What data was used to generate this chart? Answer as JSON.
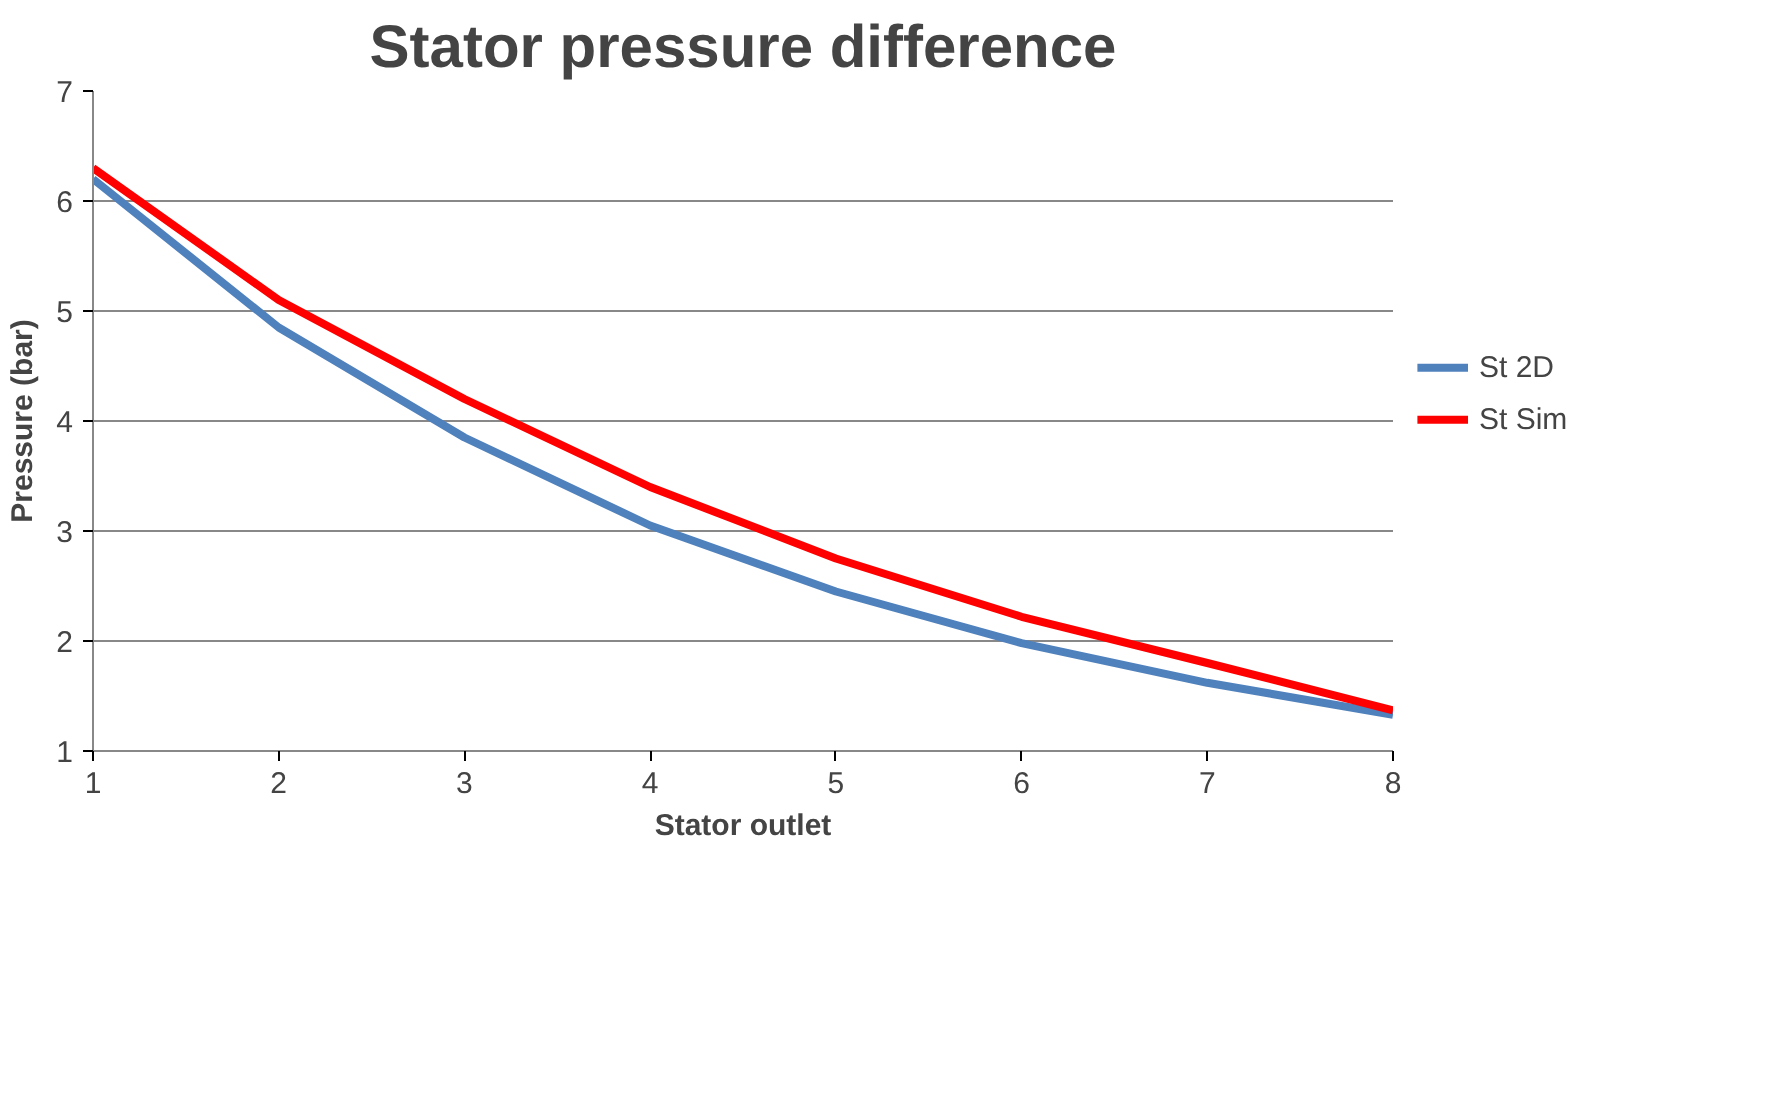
{
  "chart_data": {
    "type": "line",
    "title": "Stator pressure difference",
    "xlabel": "Stator outlet",
    "ylabel": "Pressure (bar)",
    "x": [
      1,
      2,
      3,
      4,
      5,
      6,
      7,
      8
    ],
    "series": [
      {
        "name": "St 2D",
        "color": "#4f81bd",
        "values": [
          6.2,
          4.85,
          3.85,
          3.05,
          2.45,
          1.98,
          1.62,
          1.33
        ]
      },
      {
        "name": "St Sim",
        "color": "#ff0000",
        "values": [
          6.3,
          5.1,
          4.2,
          3.4,
          2.75,
          2.22,
          1.8,
          1.37
        ]
      }
    ],
    "xlim": [
      1,
      8
    ],
    "xticks": [
      1,
      2,
      3,
      4,
      5,
      6,
      7,
      8
    ],
    "ylim": [
      1,
      7
    ],
    "yticks": [
      1,
      2,
      3,
      4,
      5,
      6,
      7
    ],
    "grid": "y",
    "legend": "right",
    "marker": "none",
    "line_style": "solid"
  }
}
